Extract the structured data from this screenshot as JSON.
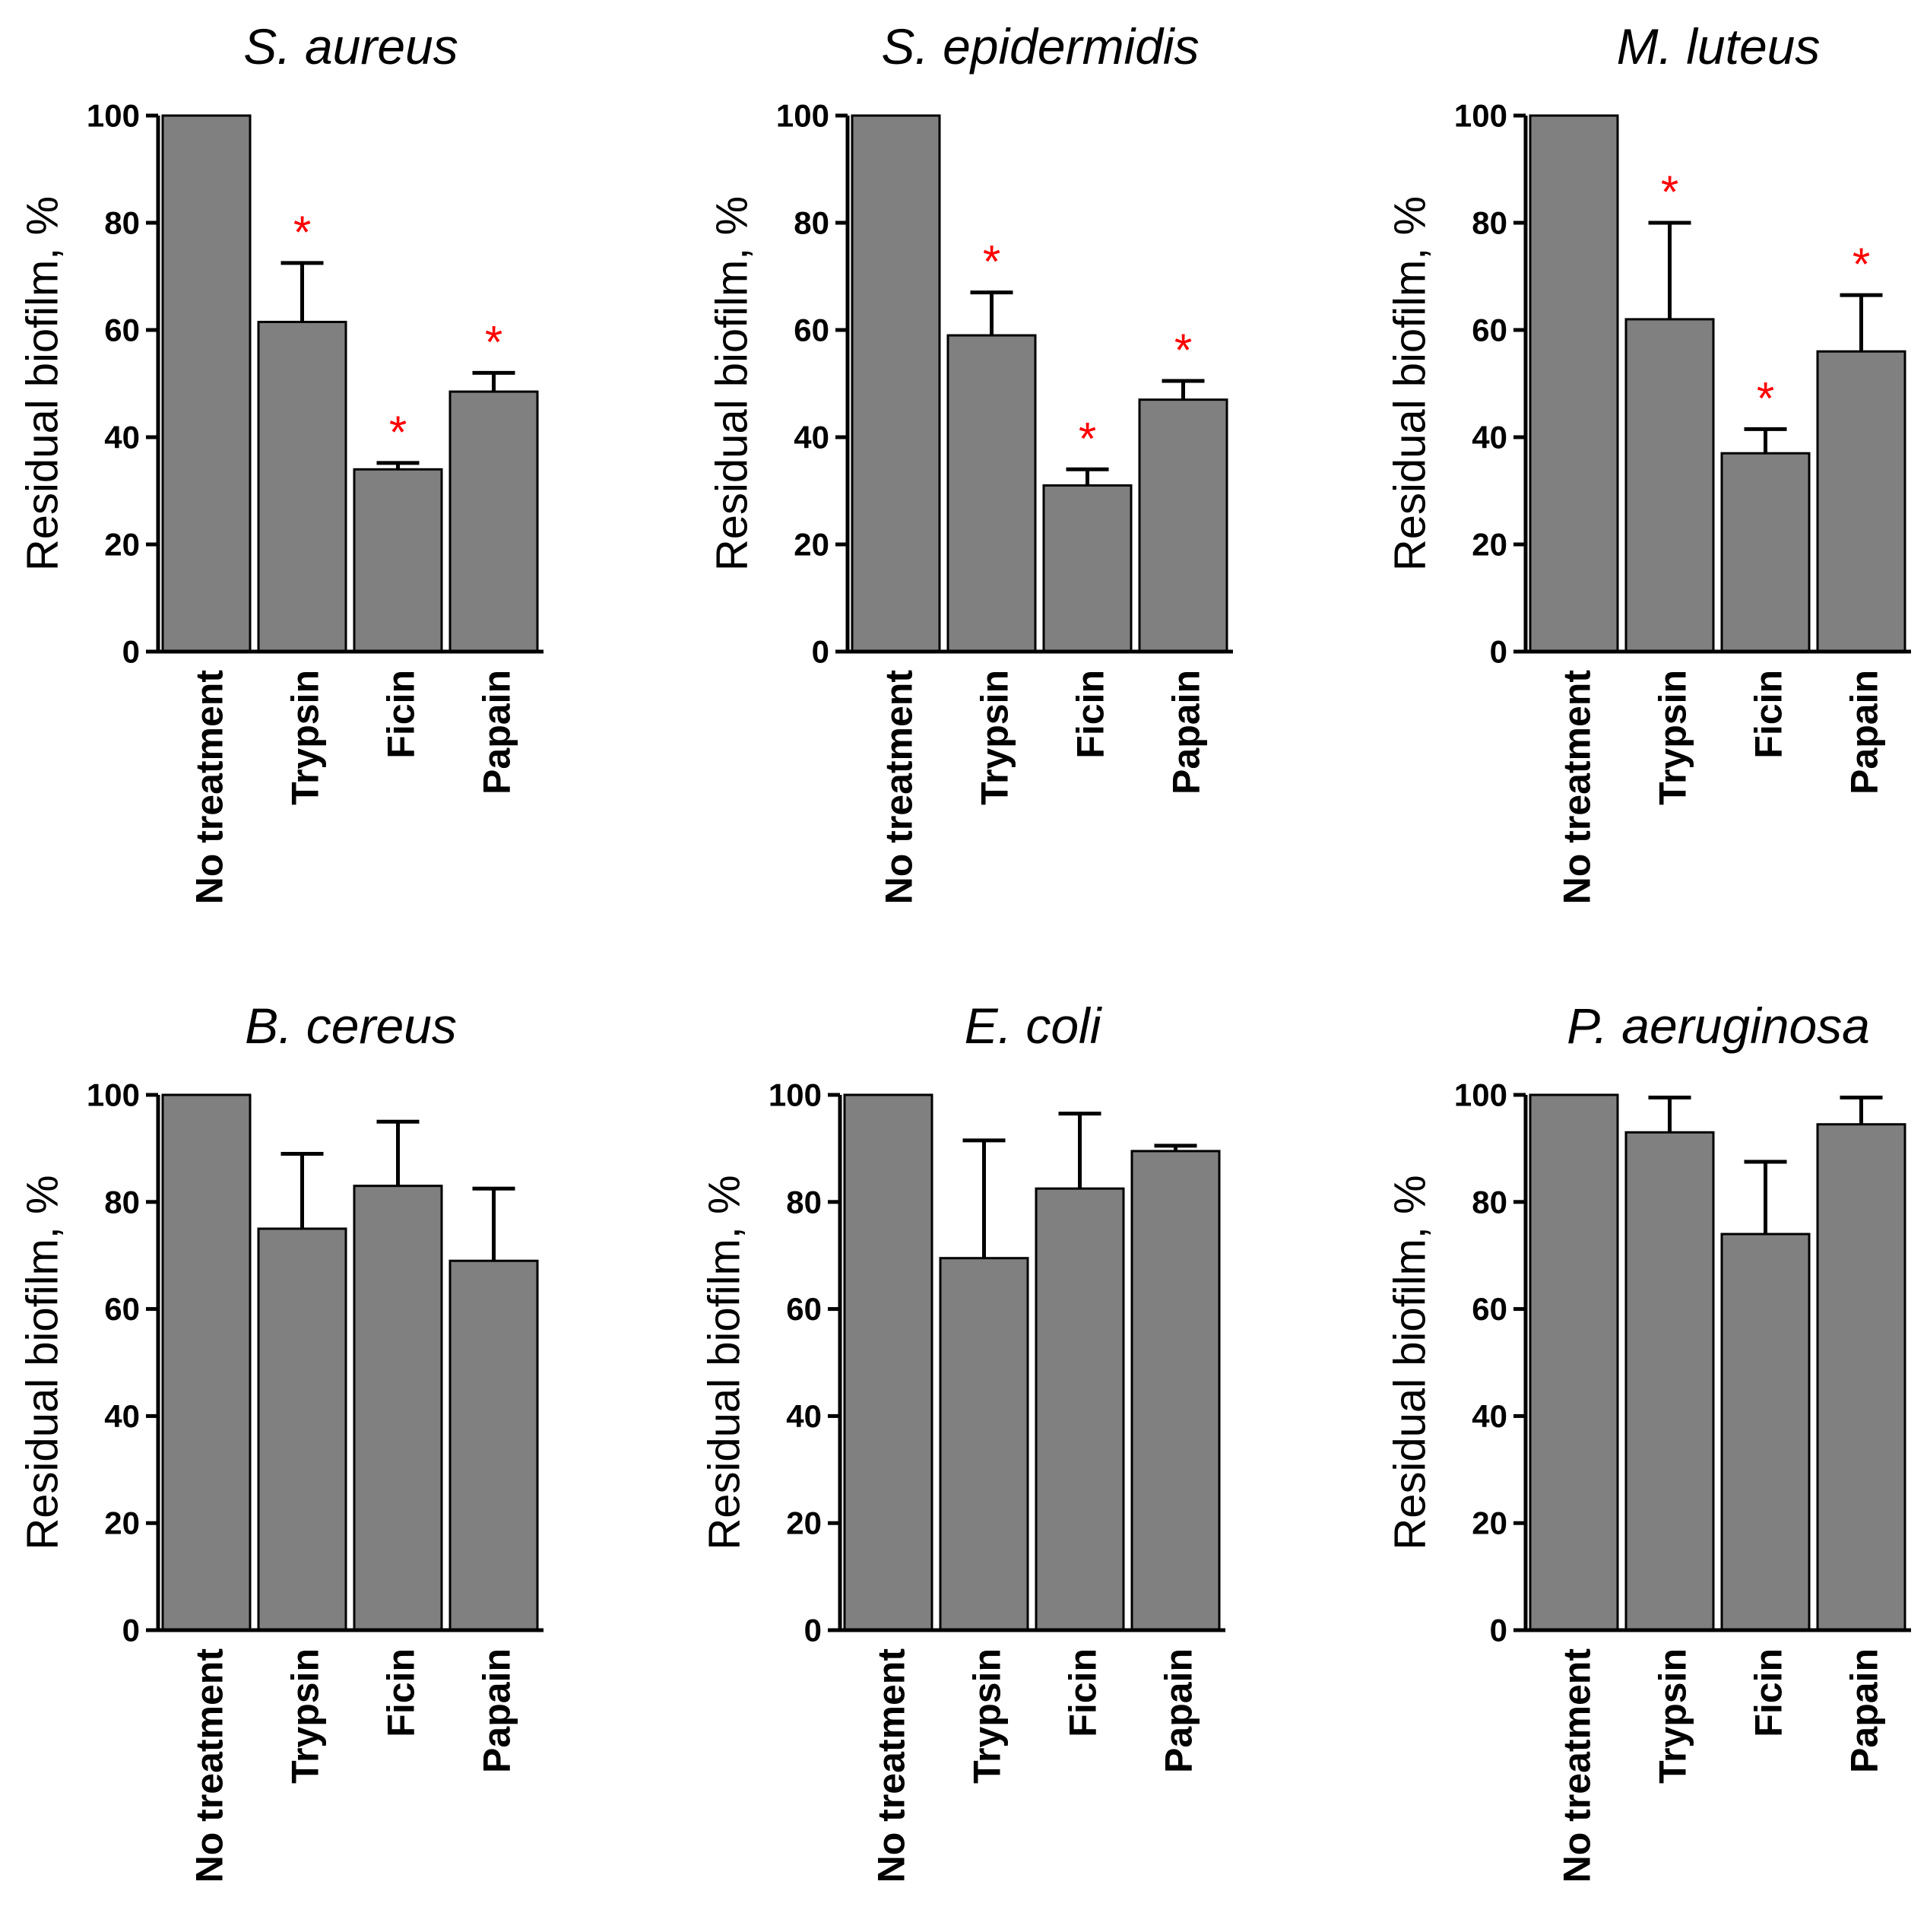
{
  "chart_data": [
    {
      "type": "bar",
      "title": "S. aureus",
      "ylabel": "Residual biofilm, %",
      "xlabel": "",
      "ylim": [
        0,
        100
      ],
      "yticks": [
        0,
        20,
        40,
        60,
        80,
        100
      ],
      "categories": [
        "No treatment",
        "Trypsin",
        "Ficin",
        "Papain"
      ],
      "values": [
        100,
        61.5,
        34,
        48.5
      ],
      "error_upper": [
        0,
        11,
        1.2,
        3.5
      ],
      "significance": [
        "",
        "*",
        "*",
        "*"
      ]
    },
    {
      "type": "bar",
      "title": "S. epidermidis",
      "ylabel": "Residual biofilm, %",
      "xlabel": "",
      "ylim": [
        0,
        100
      ],
      "yticks": [
        0,
        20,
        40,
        60,
        80,
        100
      ],
      "categories": [
        "No treatment",
        "Trypsin",
        "Ficin",
        "Papain"
      ],
      "values": [
        100,
        59,
        31,
        47
      ],
      "error_upper": [
        0,
        8,
        3,
        3.5
      ],
      "significance": [
        "",
        "*",
        "*",
        "*"
      ]
    },
    {
      "type": "bar",
      "title": "M. luteus",
      "ylabel": "Residual biofilm, %",
      "xlabel": "",
      "ylim": [
        0,
        100
      ],
      "yticks": [
        0,
        20,
        40,
        60,
        80,
        100
      ],
      "categories": [
        "No treatment",
        "Trypsin",
        "Ficin",
        "Papain"
      ],
      "values": [
        100,
        62,
        37,
        56
      ],
      "error_upper": [
        0,
        18,
        4.5,
        10.5
      ],
      "significance": [
        "",
        "*",
        "*",
        "*"
      ]
    },
    {
      "type": "bar",
      "title": "B. cereus",
      "ylabel": "Residual biofilm, %",
      "xlabel": "",
      "ylim": [
        0,
        100
      ],
      "yticks": [
        0,
        20,
        40,
        60,
        80,
        100
      ],
      "categories": [
        "No treatment",
        "Trypsin",
        "Ficin",
        "Papain"
      ],
      "values": [
        100,
        75,
        83,
        69
      ],
      "error_upper": [
        0,
        14,
        12,
        13.5
      ],
      "significance": [
        "",
        "",
        "",
        ""
      ]
    },
    {
      "type": "bar",
      "title": "E. coli",
      "ylabel": "Residual biofilm, %",
      "xlabel": "",
      "ylim": [
        0,
        100
      ],
      "yticks": [
        0,
        20,
        40,
        60,
        80,
        100
      ],
      "categories": [
        "No treatment",
        "Trypsin",
        "Ficin",
        "Papain"
      ],
      "values": [
        100,
        69.5,
        82.5,
        89.5
      ],
      "error_upper": [
        0,
        22,
        14,
        1
      ],
      "significance": [
        "",
        "",
        "",
        ""
      ]
    },
    {
      "type": "bar",
      "title": "P. aeruginosa",
      "ylabel": "Residual biofilm, %",
      "xlabel": "",
      "ylim": [
        0,
        100
      ],
      "yticks": [
        0,
        20,
        40,
        60,
        80,
        100
      ],
      "categories": [
        "No treatment",
        "Trypsin",
        "Ficin",
        "Papain"
      ],
      "values": [
        100,
        93,
        74,
        94.5
      ],
      "error_upper": [
        0,
        6.5,
        13.5,
        5
      ],
      "significance": [
        "",
        "",
        "",
        ""
      ]
    }
  ],
  "colors": {
    "bar_fill": "#808080",
    "significance": "#ff0000"
  }
}
